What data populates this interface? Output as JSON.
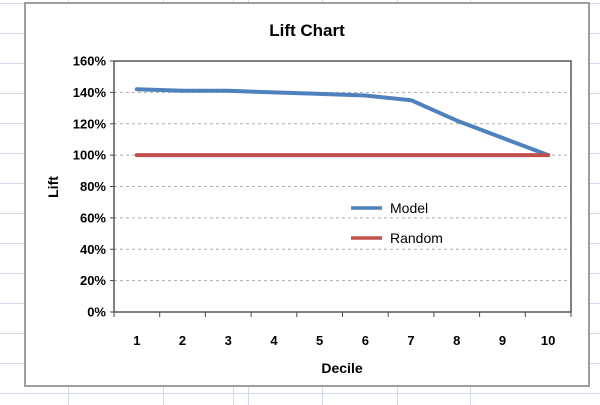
{
  "chart_data": {
    "type": "line",
    "title": "Lift Chart",
    "xlabel": "Decile",
    "ylabel": "Lift",
    "categories": [
      "1",
      "2",
      "3",
      "4",
      "5",
      "6",
      "7",
      "8",
      "9",
      "10"
    ],
    "series": [
      {
        "name": "Model",
        "color": "#4f81bd",
        "values": [
          142,
          141,
          141,
          140,
          139,
          138,
          135,
          122,
          111,
          100
        ]
      },
      {
        "name": "Random",
        "color": "#c0504d",
        "values": [
          100,
          100,
          100,
          100,
          100,
          100,
          100,
          100,
          100,
          100
        ]
      }
    ],
    "ylim": [
      0,
      160
    ],
    "y_ticks": [
      0,
      20,
      40,
      60,
      80,
      100,
      120,
      140,
      160
    ],
    "y_tick_labels": [
      "0%",
      "20%",
      "40%",
      "60%",
      "80%",
      "100%",
      "120%",
      "140%",
      "160%"
    ],
    "grid": "horizontal-dashed",
    "legend_position": "inside-right"
  },
  "colors": {
    "model_line": "#4f81bd",
    "random_line": "#c0504d",
    "plot_border": "#4a4a4a",
    "gridline": "#aeaeae",
    "chart_border": "#9e9e9e",
    "sheet_gridline": "#d2d9e8",
    "text": "#000000"
  }
}
